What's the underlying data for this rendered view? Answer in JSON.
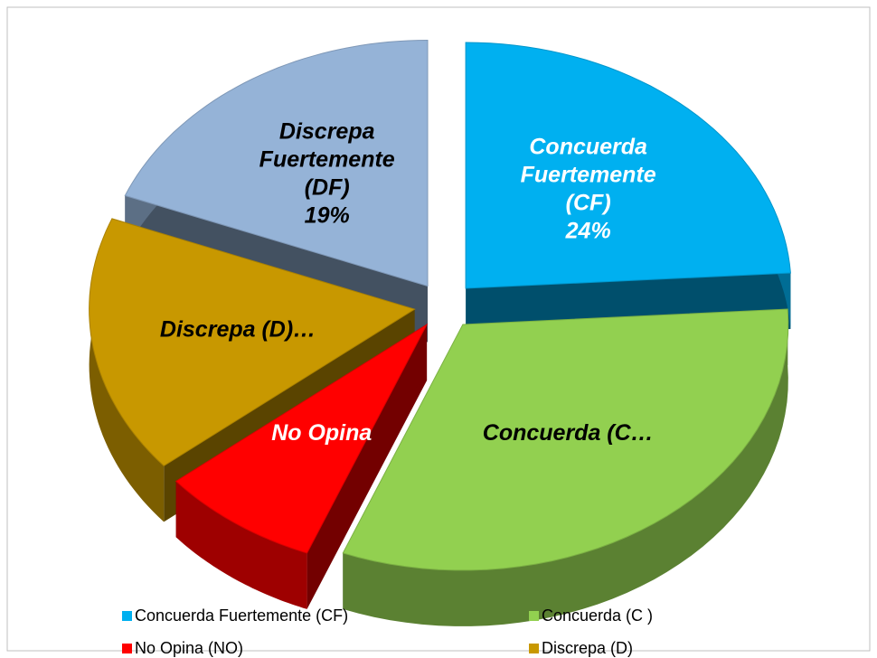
{
  "chart_data": {
    "type": "pie",
    "categories": [
      "Concuerda Fuertemente (CF)",
      "Concuerda (C )",
      "No Opina (NO)",
      "Discrepa (D)",
      null
    ],
    "values": [
      24,
      32,
      8,
      17,
      19
    ],
    "value_labels": [
      "Concuerda\nFuertemente\n(CF)\n24%",
      "Concuerda (C…",
      "No Opina",
      "Discrepa (D)…",
      "Discrepa\nFuertemente\n(DF)\n19%"
    ],
    "colors": [
      "#00b0f0",
      "#92d050",
      "#ff0000",
      "#c89800",
      "#95b3d7"
    ],
    "label_colors": [
      "#ffffff",
      "#000000",
      "#ffffff",
      "#000000",
      "#000000"
    ],
    "legend": "bottom"
  }
}
